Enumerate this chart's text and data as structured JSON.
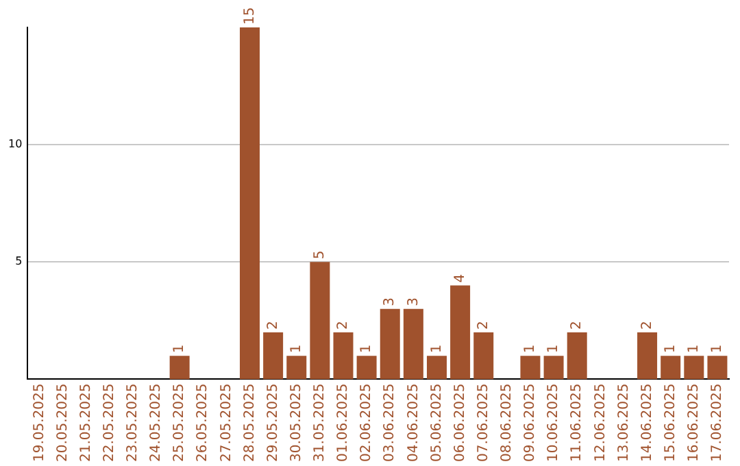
{
  "chart_data": {
    "type": "bar",
    "categories": [
      "19.05.2025",
      "20.05.2025",
      "21.05.2025",
      "22.05.2025",
      "23.05.2025",
      "24.05.2025",
      "25.05.2025",
      "26.05.2025",
      "27.05.2025",
      "28.05.2025",
      "29.05.2025",
      "30.05.2025",
      "31.05.2025",
      "01.06.2025",
      "02.06.2025",
      "03.06.2025",
      "04.06.2025",
      "05.06.2025",
      "06.06.2025",
      "07.06.2025",
      "08.06.2025",
      "09.06.2025",
      "10.06.2025",
      "11.06.2025",
      "12.06.2025",
      "13.06.2025",
      "14.06.2025",
      "15.06.2025",
      "16.06.2025",
      "17.06.2025"
    ],
    "values": [
      0,
      0,
      0,
      0,
      0,
      0,
      1,
      0,
      0,
      15,
      2,
      1,
      5,
      2,
      1,
      3,
      3,
      1,
      4,
      2,
      0,
      1,
      1,
      2,
      0,
      0,
      2,
      1,
      1,
      1
    ],
    "value_labels": [
      null,
      null,
      null,
      null,
      null,
      null,
      "1",
      null,
      null,
      "15",
      "2",
      "1",
      "5",
      "2",
      "1",
      "3",
      "3",
      "1",
      "4",
      "2",
      null,
      "1",
      "1",
      "2",
      null,
      null,
      "2",
      "1",
      "1",
      "1"
    ],
    "color": "#a0522d",
    "ylim": [
      0,
      15
    ],
    "yticks": [
      5,
      10
    ],
    "grid": "y",
    "legend": false
  }
}
